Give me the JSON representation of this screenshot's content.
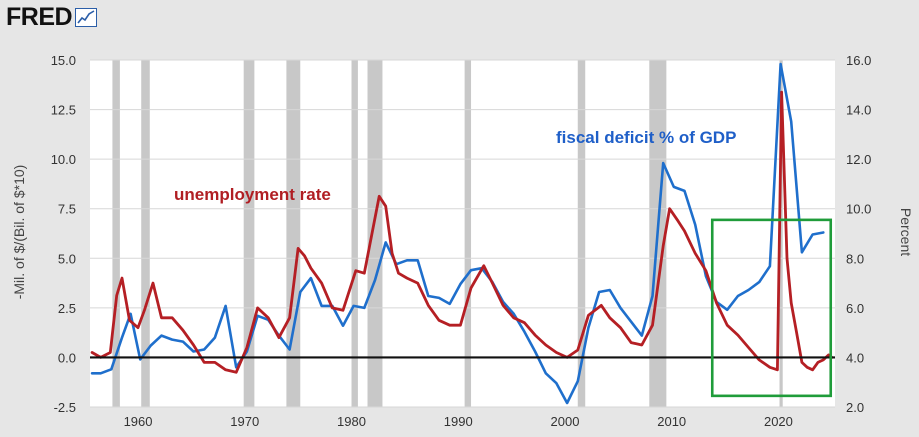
{
  "brand": {
    "name": "FRED"
  },
  "chart_data": {
    "type": "line",
    "xlim": [
      1955.5,
      2025.3
    ],
    "x_ticks": [
      1960,
      1970,
      1980,
      1990,
      2000,
      2010,
      2020
    ],
    "left_axis": {
      "label": "-Mil. of $/(Bil. of $*10)",
      "ylim": [
        -2.5,
        15.0
      ],
      "ticks": [
        -2.5,
        0.0,
        2.5,
        5.0,
        7.5,
        10.0,
        12.5,
        15.0
      ]
    },
    "right_axis": {
      "label": "Percent",
      "ylim": [
        2.0,
        16.0
      ],
      "ticks": [
        2.0,
        4.0,
        6.0,
        8.0,
        10.0,
        12.0,
        14.0,
        16.0
      ]
    },
    "annotations": [
      {
        "text": "fiscal deficit % of GDP",
        "color": "#1f5fc8"
      },
      {
        "text": "unemployment rate",
        "color": "#b01e23"
      }
    ],
    "recessions": [
      [
        1957.6,
        1958.3
      ],
      [
        1960.3,
        1961.1
      ],
      [
        1969.9,
        1970.9
      ],
      [
        1973.9,
        1975.2
      ],
      [
        1980.0,
        1980.6
      ],
      [
        1981.5,
        1982.9
      ],
      [
        1990.6,
        1991.2
      ],
      [
        2001.2,
        2001.9
      ],
      [
        2007.9,
        2009.5
      ],
      [
        2020.1,
        2020.4
      ]
    ],
    "series": [
      {
        "name": "fiscal deficit % of GDP",
        "axis": "left",
        "color": "#1f6fcc",
        "points": [
          [
            1955.7,
            -0.8
          ],
          [
            1956.5,
            -0.8
          ],
          [
            1957.5,
            -0.6
          ],
          [
            1958.5,
            1.0
          ],
          [
            1959.3,
            2.2
          ],
          [
            1960.2,
            -0.1
          ],
          [
            1961.2,
            0.6
          ],
          [
            1962.2,
            1.1
          ],
          [
            1963.2,
            0.9
          ],
          [
            1964.2,
            0.8
          ],
          [
            1965.2,
            0.3
          ],
          [
            1966.2,
            0.4
          ],
          [
            1967.2,
            1.0
          ],
          [
            1968.2,
            2.6
          ],
          [
            1969.2,
            -0.5
          ],
          [
            1970.2,
            0.3
          ],
          [
            1971.2,
            2.1
          ],
          [
            1972.2,
            1.9
          ],
          [
            1973.2,
            1.1
          ],
          [
            1974.2,
            0.4
          ],
          [
            1975.2,
            3.3
          ],
          [
            1976.2,
            4.0
          ],
          [
            1977.2,
            2.6
          ],
          [
            1978.2,
            2.6
          ],
          [
            1979.2,
            1.6
          ],
          [
            1980.2,
            2.6
          ],
          [
            1981.2,
            2.5
          ],
          [
            1982.2,
            3.9
          ],
          [
            1983.2,
            5.8
          ],
          [
            1984.2,
            4.7
          ],
          [
            1985.2,
            4.9
          ],
          [
            1986.2,
            4.9
          ],
          [
            1987.2,
            3.1
          ],
          [
            1988.2,
            3.0
          ],
          [
            1989.2,
            2.7
          ],
          [
            1990.2,
            3.7
          ],
          [
            1991.2,
            4.4
          ],
          [
            1992.2,
            4.5
          ],
          [
            1993.2,
            3.8
          ],
          [
            1994.2,
            2.8
          ],
          [
            1995.2,
            2.2
          ],
          [
            1996.2,
            1.3
          ],
          [
            1997.2,
            0.3
          ],
          [
            1998.2,
            -0.8
          ],
          [
            1999.2,
            -1.3
          ],
          [
            2000.2,
            -2.3
          ],
          [
            2001.2,
            -1.2
          ],
          [
            2002.2,
            1.5
          ],
          [
            2003.2,
            3.3
          ],
          [
            2004.2,
            3.4
          ],
          [
            2005.2,
            2.5
          ],
          [
            2006.2,
            1.8
          ],
          [
            2007.2,
            1.1
          ],
          [
            2008.2,
            3.1
          ],
          [
            2009.2,
            9.8
          ],
          [
            2010.2,
            8.6
          ],
          [
            2011.2,
            8.4
          ],
          [
            2012.2,
            6.7
          ],
          [
            2013.2,
            4.1
          ],
          [
            2014.2,
            2.8
          ],
          [
            2015.2,
            2.4
          ],
          [
            2016.2,
            3.1
          ],
          [
            2017.2,
            3.4
          ],
          [
            2018.2,
            3.8
          ],
          [
            2019.2,
            4.6
          ],
          [
            2020.2,
            14.8
          ],
          [
            2021.2,
            11.9
          ],
          [
            2022.2,
            5.3
          ],
          [
            2023.2,
            6.2
          ],
          [
            2024.2,
            6.3
          ]
        ]
      },
      {
        "name": "unemployment rate",
        "axis": "right",
        "color": "#b51f24",
        "points": [
          [
            1955.7,
            4.2
          ],
          [
            1956.5,
            4.0
          ],
          [
            1957.4,
            4.2
          ],
          [
            1958.0,
            6.5
          ],
          [
            1958.5,
            7.2
          ],
          [
            1959.2,
            5.5
          ],
          [
            1960.0,
            5.2
          ],
          [
            1960.6,
            5.9
          ],
          [
            1961.4,
            7.0
          ],
          [
            1962.2,
            5.6
          ],
          [
            1963.2,
            5.6
          ],
          [
            1964.2,
            5.1
          ],
          [
            1965.2,
            4.5
          ],
          [
            1966.2,
            3.8
          ],
          [
            1967.2,
            3.8
          ],
          [
            1968.2,
            3.5
          ],
          [
            1969.2,
            3.4
          ],
          [
            1970.2,
            4.4
          ],
          [
            1971.2,
            6.0
          ],
          [
            1972.2,
            5.6
          ],
          [
            1973.2,
            4.8
          ],
          [
            1974.2,
            5.6
          ],
          [
            1975.0,
            8.4
          ],
          [
            1975.6,
            8.1
          ],
          [
            1976.2,
            7.6
          ],
          [
            1977.2,
            7.0
          ],
          [
            1978.2,
            6.0
          ],
          [
            1979.2,
            5.9
          ],
          [
            1980.4,
            7.5
          ],
          [
            1981.2,
            7.4
          ],
          [
            1982.6,
            10.5
          ],
          [
            1983.2,
            10.1
          ],
          [
            1983.8,
            8.2
          ],
          [
            1984.4,
            7.4
          ],
          [
            1985.2,
            7.2
          ],
          [
            1986.2,
            7.0
          ],
          [
            1987.2,
            6.1
          ],
          [
            1988.2,
            5.5
          ],
          [
            1989.2,
            5.3
          ],
          [
            1990.2,
            5.3
          ],
          [
            1991.2,
            6.8
          ],
          [
            1992.4,
            7.7
          ],
          [
            1993.2,
            7.0
          ],
          [
            1994.2,
            6.1
          ],
          [
            1995.2,
            5.6
          ],
          [
            1996.2,
            5.4
          ],
          [
            1997.2,
            4.9
          ],
          [
            1998.2,
            4.5
          ],
          [
            1999.2,
            4.2
          ],
          [
            2000.2,
            4.0
          ],
          [
            2001.2,
            4.3
          ],
          [
            2002.2,
            5.7
          ],
          [
            2003.4,
            6.1
          ],
          [
            2004.2,
            5.6
          ],
          [
            2005.2,
            5.2
          ],
          [
            2006.2,
            4.6
          ],
          [
            2007.2,
            4.5
          ],
          [
            2008.2,
            5.3
          ],
          [
            2009.2,
            8.5
          ],
          [
            2009.8,
            10.0
          ],
          [
            2010.6,
            9.5
          ],
          [
            2011.2,
            9.1
          ],
          [
            2012.2,
            8.2
          ],
          [
            2013.2,
            7.5
          ],
          [
            2014.2,
            6.2
          ],
          [
            2015.2,
            5.3
          ],
          [
            2016.2,
            4.9
          ],
          [
            2017.2,
            4.4
          ],
          [
            2018.2,
            3.9
          ],
          [
            2019.2,
            3.6
          ],
          [
            2019.9,
            3.5
          ],
          [
            2020.3,
            14.7
          ],
          [
            2020.8,
            8.0
          ],
          [
            2021.2,
            6.2
          ],
          [
            2021.7,
            5.0
          ],
          [
            2022.2,
            3.8
          ],
          [
            2022.7,
            3.6
          ],
          [
            2023.2,
            3.5
          ],
          [
            2023.7,
            3.8
          ],
          [
            2024.2,
            3.9
          ],
          [
            2024.7,
            4.1
          ],
          [
            2025.0,
            4.0
          ]
        ]
      }
    ],
    "highlight_box": {
      "x_range": [
        2013.8,
        2024.9
      ],
      "right_axis_range": [
        2.45,
        9.55
      ],
      "color": "#1f9c3a"
    },
    "zero_line": {
      "left_axis_value": 0.0,
      "color": "#111111"
    }
  }
}
